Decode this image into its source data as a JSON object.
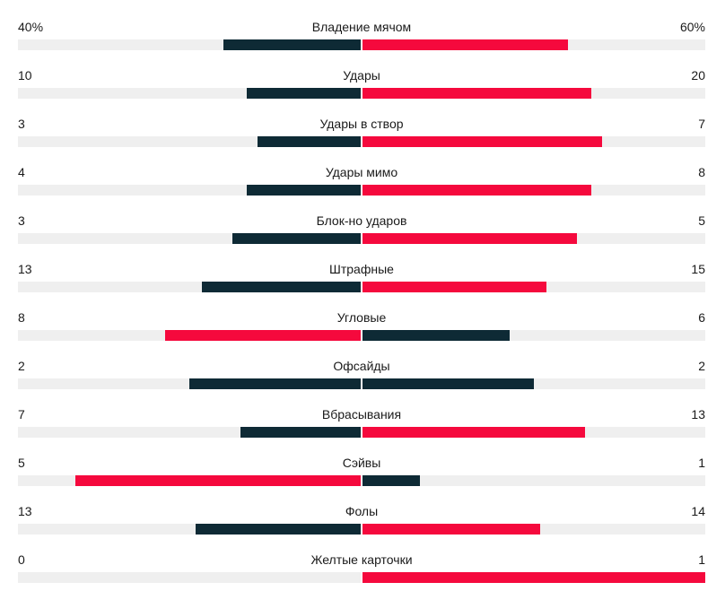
{
  "colors": {
    "leading": "#f5093d",
    "trailing": "#0e2a35",
    "track": "#efefef"
  },
  "stats": [
    {
      "label": "Владение мячом",
      "home": "40%",
      "away": "60%",
      "home_value": 40,
      "away_value": 60
    },
    {
      "label": "Удары",
      "home": "10",
      "away": "20",
      "home_value": 10,
      "away_value": 20
    },
    {
      "label": "Удары в створ",
      "home": "3",
      "away": "7",
      "home_value": 3,
      "away_value": 7
    },
    {
      "label": "Удары мимо",
      "home": "4",
      "away": "8",
      "home_value": 4,
      "away_value": 8
    },
    {
      "label": "Блок-но ударов",
      "home": "3",
      "away": "5",
      "home_value": 3,
      "away_value": 5
    },
    {
      "label": "Штрафные",
      "home": "13",
      "away": "15",
      "home_value": 13,
      "away_value": 15
    },
    {
      "label": "Угловые",
      "home": "8",
      "away": "6",
      "home_value": 8,
      "away_value": 6
    },
    {
      "label": "Офсайды",
      "home": "2",
      "away": "2",
      "home_value": 2,
      "away_value": 2
    },
    {
      "label": "Вбрасывания",
      "home": "7",
      "away": "13",
      "home_value": 7,
      "away_value": 13
    },
    {
      "label": "Сэйвы",
      "home": "5",
      "away": "1",
      "home_value": 5,
      "away_value": 1
    },
    {
      "label": "Фолы",
      "home": "13",
      "away": "14",
      "home_value": 13,
      "away_value": 14
    },
    {
      "label": "Желтые карточки",
      "home": "0",
      "away": "1",
      "home_value": 0,
      "away_value": 1
    }
  ]
}
